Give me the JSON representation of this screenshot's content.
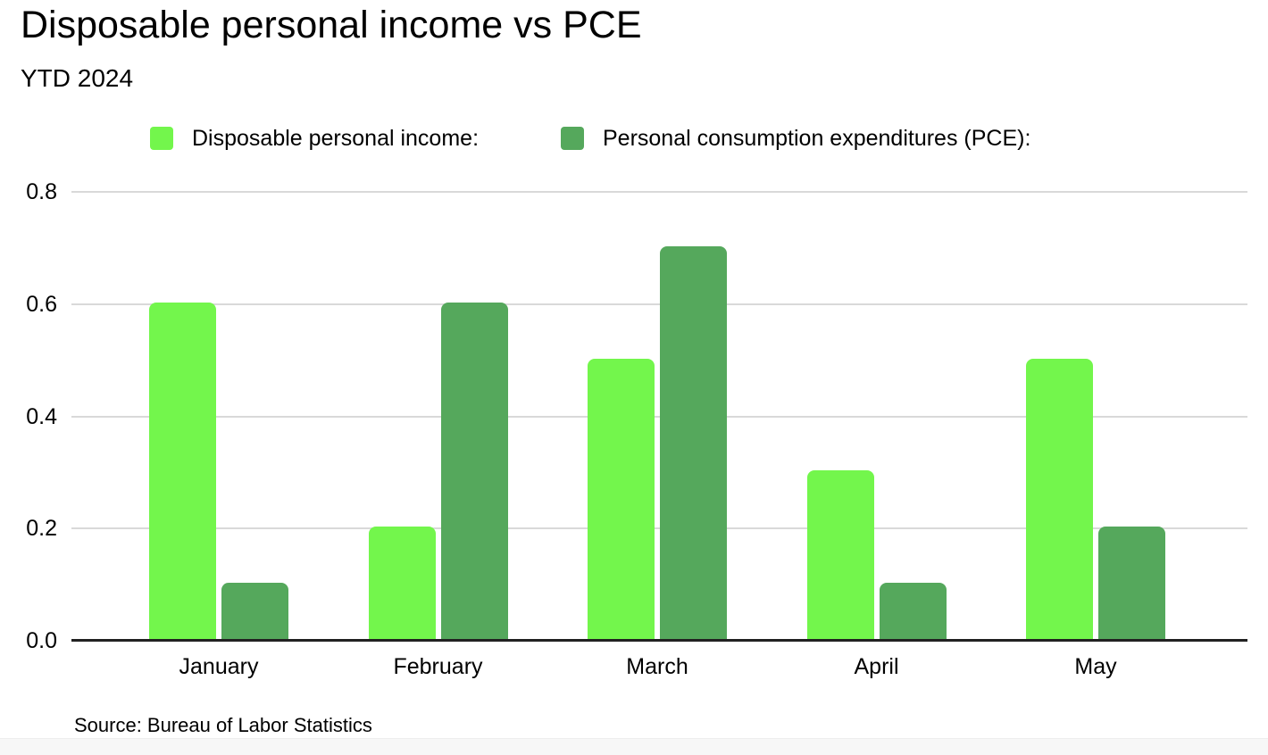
{
  "header": {
    "title": "Disposable personal income vs PCE",
    "subtitle": "YTD 2024"
  },
  "legend": [
    {
      "label": "Disposable personal income:",
      "color": "#73F64C"
    },
    {
      "label": "Personal consumption expenditures (PCE):",
      "color": "#55A85C"
    }
  ],
  "chart_data": {
    "type": "bar",
    "title": "Disposable personal income vs PCE",
    "subtitle": "YTD 2024",
    "categories": [
      "January",
      "February",
      "March",
      "April",
      "May"
    ],
    "series": [
      {
        "name": "Disposable personal income",
        "color": "#73F64C",
        "values": [
          0.6,
          0.2,
          0.5,
          0.3,
          0.5
        ]
      },
      {
        "name": "Personal consumption expenditures (PCE)",
        "color": "#55A85C",
        "values": [
          0.1,
          0.6,
          0.7,
          0.1,
          0.2
        ]
      }
    ],
    "xlabel": "",
    "ylabel": "",
    "ylim": [
      0,
      0.8
    ],
    "yticks": [
      0.0,
      0.2,
      0.4,
      0.6,
      0.8
    ],
    "ytick_labels": [
      "0.0",
      "0.2",
      "0.4",
      "0.6",
      "0.8"
    ],
    "grid": true,
    "gridline_color": "#d9d9d9",
    "axis_line_color": "#212121",
    "legend_position": "top"
  },
  "footer": {
    "source": "Source: Bureau of Labor Statistics"
  }
}
